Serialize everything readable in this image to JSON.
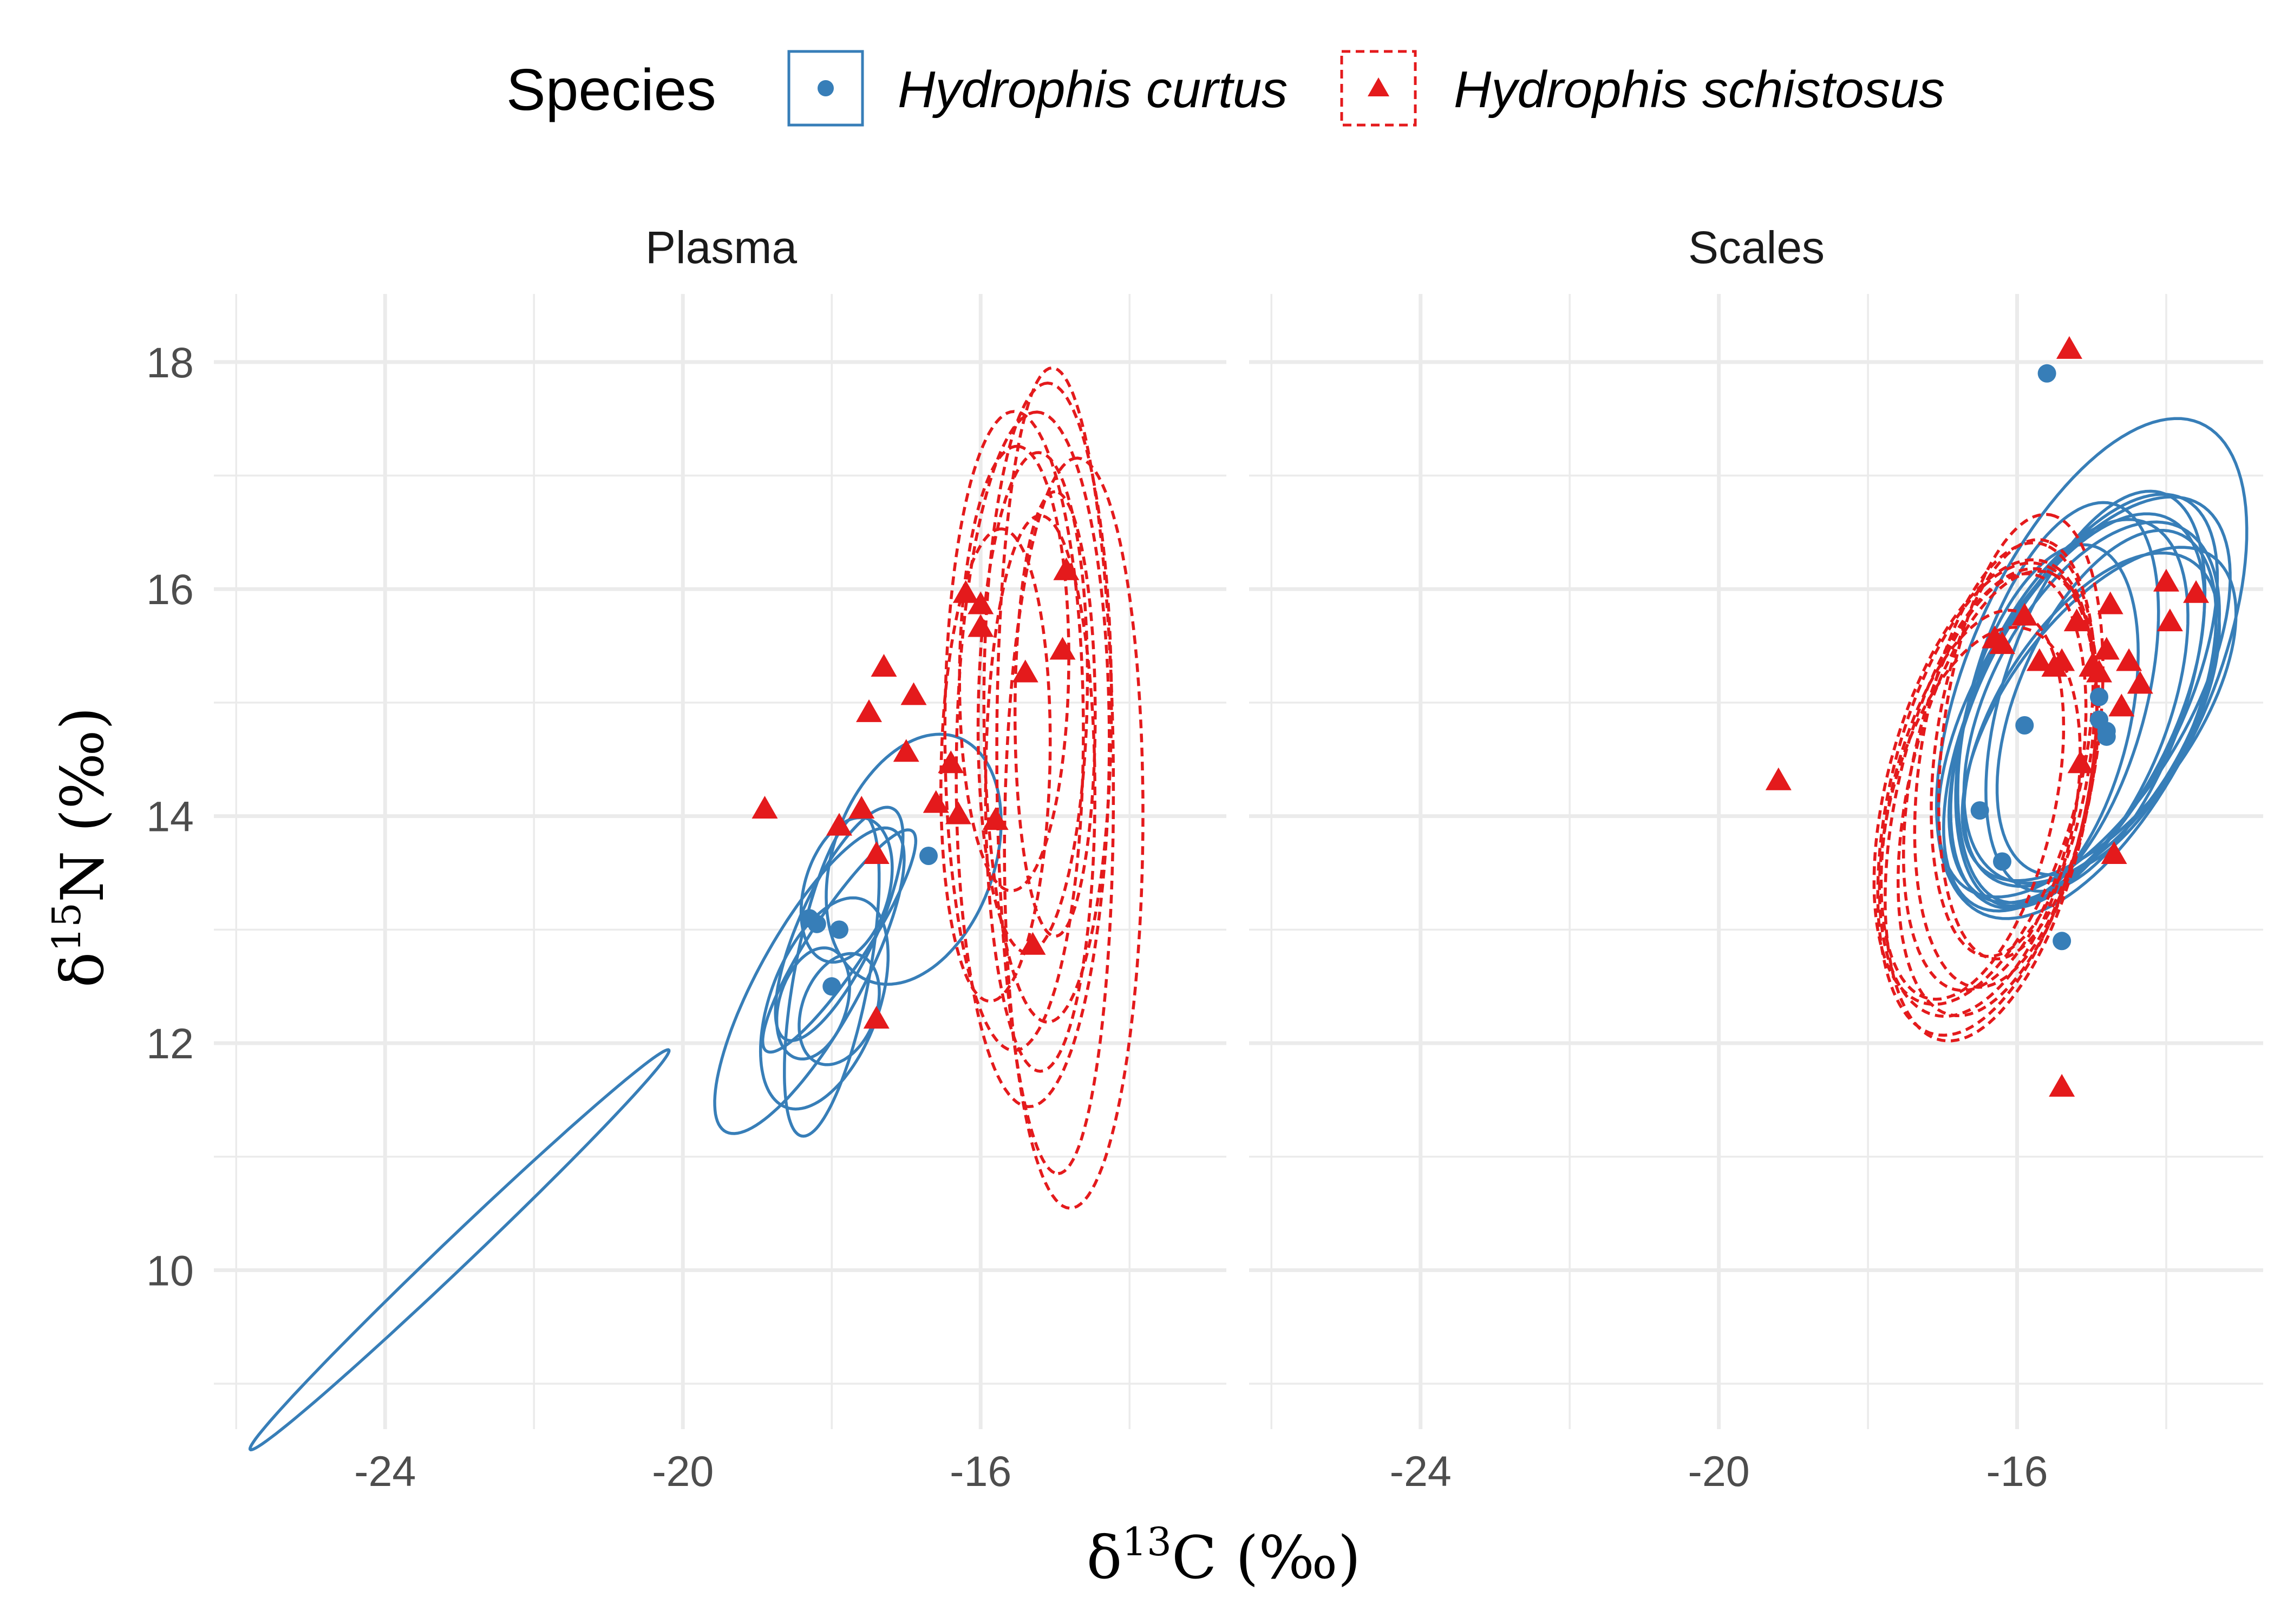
{
  "chart_data": {
    "type": "scatter",
    "x_axis": {
      "label_prefix": "δ",
      "label_sup": "13",
      "label_main": "C (‰)",
      "range": [
        -26.3,
        -12.7
      ],
      "ticks": [
        -24,
        -20,
        -16
      ],
      "tick_labels": [
        "-24",
        "-20",
        "-16"
      ],
      "minor_ticks": [
        -26,
        -22,
        -18,
        -14
      ]
    },
    "y_axis": {
      "label_prefix": "δ",
      "label_sup": "15",
      "label_main": "N (‰)",
      "range": [
        8.6,
        18.6
      ],
      "ticks": [
        10,
        12,
        14,
        16,
        18
      ],
      "tick_labels": [
        "10",
        "12",
        "14",
        "16",
        "18"
      ],
      "minor_ticks": [
        9,
        11,
        13,
        15,
        17
      ]
    },
    "grid": true,
    "legend": {
      "title": "Species",
      "position": "top",
      "entries": [
        {
          "label": "Hydrophis curtus",
          "shape": "circle",
          "line": "solid"
        },
        {
          "label": "Hydrophis schistosus",
          "shape": "triangle",
          "line": "dashed"
        }
      ]
    },
    "colors": {
      "Hydrophis curtus": "#377eb8",
      "Hydrophis schistosus": "#e41a1c"
    },
    "panels": [
      {
        "title": "Plasma",
        "series": [
          {
            "name": "Hydrophis curtus",
            "points": [
              [
                -18.3,
                13.1
              ],
              [
                -18.2,
                13.05
              ],
              [
                -17.9,
                13.0
              ],
              [
                -18.0,
                12.5
              ],
              [
                -16.7,
                13.65
              ]
            ],
            "ellipses": [
              {
                "cx": -23.0,
                "cy": 10.18,
                "sx": 1.15,
                "sy": 0.72,
                "r": 0.995
              },
              {
                "cx": -18.3,
                "cy": 12.55,
                "sx": 0.52,
                "sy": 0.55,
                "r": 0.8
              },
              {
                "cx": -18.0,
                "cy": 12.6,
                "sx": 0.26,
                "sy": 0.58,
                "r": 0.6
              },
              {
                "cx": -18.1,
                "cy": 12.35,
                "sx": 0.35,
                "sy": 0.38,
                "r": 0.45
              },
              {
                "cx": -17.9,
                "cy": 13.05,
                "sx": 0.35,
                "sy": 0.42,
                "r": 0.75
              },
              {
                "cx": -17.8,
                "cy": 13.35,
                "sx": 0.25,
                "sy": 0.26,
                "r": 0.3
              },
              {
                "cx": -17.9,
                "cy": 12.9,
                "sx": 0.42,
                "sy": 0.4,
                "r": 0.9
              },
              {
                "cx": -16.9,
                "cy": 13.62,
                "sx": 0.48,
                "sy": 0.45,
                "r": 0.3
              },
              {
                "cx": -17.9,
                "cy": 12.3,
                "sx": 0.22,
                "sy": 0.2,
                "r": 0.3
              },
              {
                "cx": -18.25,
                "cy": 12.35,
                "sx": 0.2,
                "sy": 0.2,
                "r": 0.3
              }
            ]
          },
          {
            "name": "Hydrophis schistosus",
            "points": [
              [
                -18.9,
                14.05
              ],
              [
                -17.9,
                13.9
              ],
              [
                -17.6,
                14.05
              ],
              [
                -17.4,
                13.65
              ],
              [
                -17.3,
                15.3
              ],
              [
                -17.5,
                14.9
              ],
              [
                -16.9,
                15.05
              ],
              [
                -17.0,
                14.55
              ],
              [
                -16.6,
                14.1
              ],
              [
                -16.4,
                14.45
              ],
              [
                -16.3,
                14.0
              ],
              [
                -16.2,
                15.95
              ],
              [
                -16.0,
                15.85
              ],
              [
                -16.0,
                15.65
              ],
              [
                -15.8,
                13.95
              ],
              [
                -15.4,
                15.25
              ],
              [
                -15.3,
                12.85
              ],
              [
                -14.9,
                15.45
              ],
              [
                -14.85,
                16.15
              ],
              [
                -17.4,
                12.2
              ]
            ],
            "ellipses": [
              {
                "cx": -15.3,
                "cy": 14.5,
                "sx": 0.42,
                "sy": 1.25,
                "r": 0.05
              },
              {
                "cx": -15.1,
                "cy": 15.0,
                "sx": 0.35,
                "sy": 1.15,
                "r": 0.0
              },
              {
                "cx": -15.0,
                "cy": 14.4,
                "sx": 0.32,
                "sy": 1.45,
                "r": -0.05
              },
              {
                "cx": -14.75,
                "cy": 13.85,
                "sx": 0.38,
                "sy": 1.35,
                "r": 0.05
              },
              {
                "cx": -15.55,
                "cy": 14.75,
                "sx": 0.38,
                "sy": 1.15,
                "r": 0.0
              },
              {
                "cx": -15.3,
                "cy": 15.0,
                "sx": 0.3,
                "sy": 0.9,
                "r": 0.1
              },
              {
                "cx": -15.8,
                "cy": 14.45,
                "sx": 0.3,
                "sy": 0.85,
                "r": 0.1
              },
              {
                "cx": -15.0,
                "cy": 14.9,
                "sx": 0.22,
                "sy": 0.8,
                "r": 0.0
              },
              {
                "cx": -15.55,
                "cy": 15.3,
                "sx": 0.3,
                "sy": 0.8,
                "r": 0.05
              },
              {
                "cx": -15.2,
                "cy": 14.2,
                "sx": 0.3,
                "sy": 1.0,
                "r": 0.0
              }
            ]
          }
        ]
      },
      {
        "title": "Scales",
        "series": [
          {
            "name": "Hydrophis curtus",
            "points": [
              [
                -15.6,
                17.9
              ],
              [
                -16.5,
                14.05
              ],
              [
                -16.2,
                13.6
              ],
              [
                -15.9,
                14.8
              ],
              [
                -15.4,
                12.9
              ],
              [
                -14.9,
                15.05
              ],
              [
                -14.9,
                14.85
              ],
              [
                -14.8,
                14.75
              ],
              [
                -14.8,
                14.7
              ]
            ],
            "ellipses": [
              {
                "cx": -15.0,
                "cy": 15.3,
                "sx": 0.85,
                "sy": 0.9,
                "r": 0.55
              },
              {
                "cx": -15.1,
                "cy": 15.05,
                "sx": 0.8,
                "sy": 0.72,
                "r": 0.6
              },
              {
                "cx": -15.15,
                "cy": 15.0,
                "sx": 0.75,
                "sy": 0.75,
                "r": 0.6
              },
              {
                "cx": -15.2,
                "cy": 14.95,
                "sx": 0.7,
                "sy": 0.7,
                "r": 0.55
              },
              {
                "cx": -15.0,
                "cy": 15.0,
                "sx": 0.7,
                "sy": 0.65,
                "r": 0.5
              },
              {
                "cx": -14.95,
                "cy": 15.1,
                "sx": 0.6,
                "sy": 0.72,
                "r": 0.5
              },
              {
                "cx": -15.3,
                "cy": 14.9,
                "sx": 0.65,
                "sy": 0.7,
                "r": 0.5
              },
              {
                "cx": -15.0,
                "cy": 14.85,
                "sx": 0.7,
                "sy": 0.6,
                "r": 0.55
              },
              {
                "cx": -15.45,
                "cy": 15.0,
                "sx": 0.55,
                "sy": 0.72,
                "r": 0.45
              },
              {
                "cx": -14.9,
                "cy": 14.9,
                "sx": 0.75,
                "sy": 0.6,
                "r": 0.6
              },
              {
                "cx": -15.6,
                "cy": 14.8,
                "sx": 0.5,
                "sy": 0.65,
                "r": 0.4
              },
              {
                "cx": -14.8,
                "cy": 15.0,
                "sx": 0.6,
                "sy": 0.62,
                "r": 0.5
              }
            ]
          },
          {
            "name": "Hydrophis schistosus",
            "points": [
              [
                -19.2,
                14.3
              ],
              [
                -16.3,
                15.55
              ],
              [
                -16.2,
                15.5
              ],
              [
                -15.9,
                15.75
              ],
              [
                -15.7,
                15.35
              ],
              [
                -15.5,
                15.3
              ],
              [
                -15.3,
                18.1
              ],
              [
                -15.4,
                15.35
              ],
              [
                -15.2,
                15.7
              ],
              [
                -15.15,
                14.45
              ],
              [
                -15.0,
                15.3
              ],
              [
                -14.9,
                15.25
              ],
              [
                -14.8,
                15.45
              ],
              [
                -14.75,
                15.85
              ],
              [
                -14.6,
                14.95
              ],
              [
                -14.5,
                15.35
              ],
              [
                -14.35,
                15.15
              ],
              [
                -14.0,
                16.05
              ],
              [
                -13.6,
                15.95
              ],
              [
                -13.95,
                15.7
              ],
              [
                -14.7,
                13.65
              ],
              [
                -15.4,
                11.6
              ]
            ],
            "ellipses": [
              {
                "cx": -16.35,
                "cy": 14.1,
                "sx": 0.58,
                "sy": 0.85,
                "r": 0.4
              },
              {
                "cx": -16.25,
                "cy": 14.2,
                "sx": 0.55,
                "sy": 0.8,
                "r": 0.4
              },
              {
                "cx": -16.3,
                "cy": 14.3,
                "sx": 0.5,
                "sy": 0.75,
                "r": 0.35
              },
              {
                "cx": -16.4,
                "cy": 14.15,
                "sx": 0.6,
                "sy": 0.85,
                "r": 0.4
              },
              {
                "cx": -16.5,
                "cy": 13.95,
                "sx": 0.55,
                "sy": 0.7,
                "r": 0.35
              },
              {
                "cx": -16.15,
                "cy": 14.45,
                "sx": 0.5,
                "sy": 0.8,
                "r": 0.3
              },
              {
                "cx": -16.05,
                "cy": 14.6,
                "sx": 0.45,
                "sy": 0.75,
                "r": 0.3
              },
              {
                "cx": -16.6,
                "cy": 14.1,
                "sx": 0.5,
                "sy": 0.7,
                "r": 0.4
              },
              {
                "cx": -15.95,
                "cy": 14.7,
                "sx": 0.45,
                "sy": 0.8,
                "r": 0.3
              },
              {
                "cx": -16.45,
                "cy": 14.3,
                "sx": 0.6,
                "sy": 0.8,
                "r": 0.45
              }
            ]
          }
        ]
      }
    ]
  }
}
